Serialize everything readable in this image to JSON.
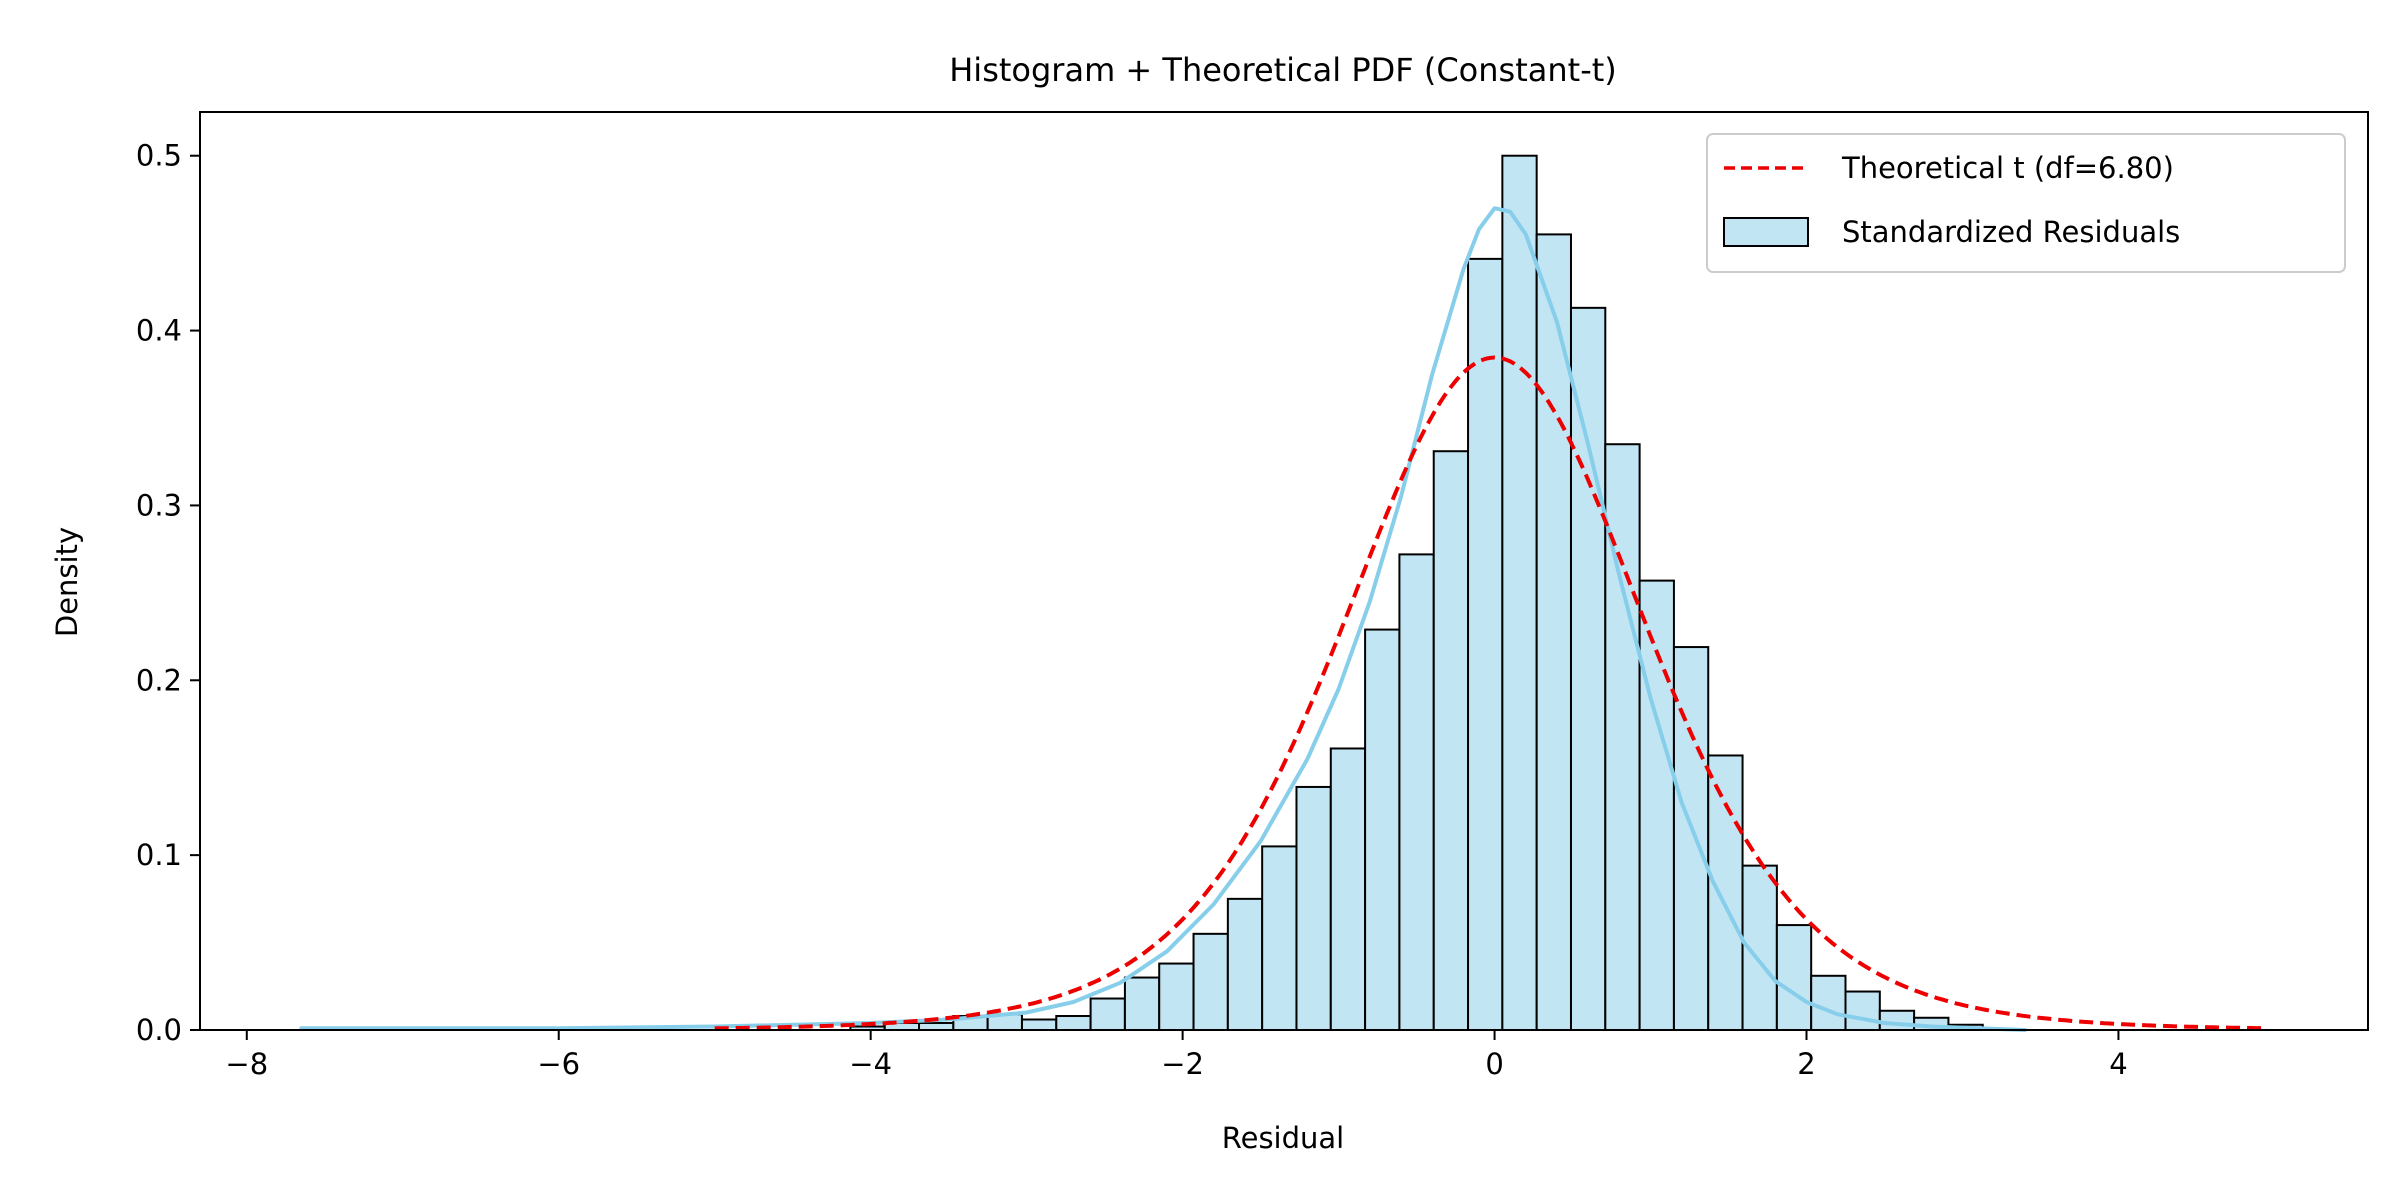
{
  "chart_data": {
    "type": "bar",
    "title": "Histogram + Theoretical PDF (Constant-t)",
    "xlabel": "Residual",
    "ylabel": "Density",
    "xlim": [
      -8.3,
      5.6
    ],
    "ylim": [
      0,
      0.525
    ],
    "xticks": [
      -8,
      -6,
      -4,
      -2,
      0,
      2,
      4
    ],
    "xtick_labels": [
      "−8",
      "−6",
      "−4",
      "−2",
      "0",
      "2",
      "4"
    ],
    "yticks": [
      0,
      0.1,
      0.2,
      0.3,
      0.4,
      0.5
    ],
    "ytick_labels": [
      "0.0",
      "0.1",
      "0.2",
      "0.3",
      "0.4",
      "0.5"
    ],
    "grid": false,
    "legend_position": "top-right",
    "legend": [
      {
        "label": "Theoretical t (df=6.80)",
        "style": "dashed-line",
        "color": "#ee0000"
      },
      {
        "label": "Standardized Residuals",
        "style": "patch",
        "color": "#c2e5f3"
      }
    ],
    "histogram": {
      "name": "Standardized Residuals",
      "fill": "#c2e5f3",
      "edge": "#000000",
      "bin_edges": [
        -7.65,
        -7.43,
        -7.21,
        -6.99,
        -6.77,
        -6.55,
        -6.33,
        -6.11,
        -5.89,
        -5.67,
        -5.45,
        -5.23,
        -5.01,
        -4.79,
        -4.57,
        -4.35,
        -4.13,
        -3.91,
        -3.69,
        -3.47,
        -3.25,
        -3.03,
        -2.81,
        -2.59,
        -2.37,
        -2.15,
        -1.93,
        -1.71,
        -1.49,
        -1.27,
        -1.05,
        -0.83,
        -0.61,
        -0.39,
        -0.17,
        0.05,
        0.27,
        0.49,
        0.71,
        0.93,
        1.15,
        1.37,
        1.59,
        1.81,
        2.03,
        2.25,
        2.47,
        2.69,
        2.91,
        3.13,
        3.35
      ],
      "densities": [
        0.001,
        0.0,
        0.0,
        0.0,
        0.0,
        0.0,
        0.0,
        0.0,
        0.0,
        0.0,
        0.0,
        0.0,
        0.0,
        0.0,
        0.0,
        0.0,
        0.002,
        0.004,
        0.004,
        0.008,
        0.009,
        0.006,
        0.008,
        0.018,
        0.03,
        0.038,
        0.055,
        0.075,
        0.105,
        0.139,
        0.161,
        0.229,
        0.272,
        0.331,
        0.441,
        0.5,
        0.455,
        0.413,
        0.335,
        0.257,
        0.219,
        0.157,
        0.094,
        0.06,
        0.031,
        0.022,
        0.011,
        0.007,
        0.003,
        0.0
      ]
    },
    "kde": {
      "color": "#87ceeb",
      "x": [
        -7.65,
        -6.0,
        -5.0,
        -4.0,
        -3.5,
        -3.0,
        -2.7,
        -2.4,
        -2.1,
        -1.8,
        -1.5,
        -1.2,
        -1.0,
        -0.8,
        -0.6,
        -0.4,
        -0.2,
        -0.1,
        0.0,
        0.1,
        0.2,
        0.4,
        0.6,
        0.8,
        1.0,
        1.2,
        1.4,
        1.6,
        1.8,
        2.0,
        2.2,
        2.5,
        2.8,
        3.1,
        3.4
      ],
      "y": [
        0.001,
        0.001,
        0.002,
        0.004,
        0.006,
        0.01,
        0.016,
        0.027,
        0.045,
        0.072,
        0.108,
        0.155,
        0.195,
        0.245,
        0.305,
        0.375,
        0.435,
        0.458,
        0.47,
        0.468,
        0.455,
        0.405,
        0.335,
        0.26,
        0.19,
        0.13,
        0.085,
        0.05,
        0.028,
        0.016,
        0.009,
        0.004,
        0.002,
        0.001,
        0.0
      ]
    },
    "theoretical_t": {
      "name": "Theoretical t (df=6.80)",
      "color": "#ee0000",
      "df": 6.8,
      "x_range": [
        -5.0,
        4.95
      ]
    }
  }
}
